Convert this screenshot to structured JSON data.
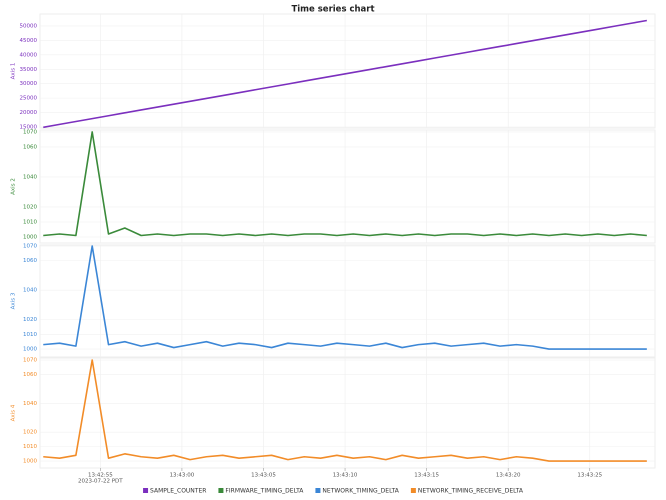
{
  "chart_data": [
    {
      "type": "line",
      "title": "Time series chart",
      "ylabel": "Axis 1",
      "x": [
        49371.5,
        49372.5,
        49373.5,
        49374.5,
        49375.5,
        49376.5,
        49377.5,
        49378.5,
        49379.5,
        49380.5,
        49381.5,
        49382.5,
        49383.5,
        49384.5,
        49385.5,
        49386.5,
        49387.5,
        49388.5,
        49389.5,
        49390.5,
        49391.5,
        49392.5,
        49393.5,
        49394.5,
        49395.5,
        49396.5,
        49397.5,
        49398.5,
        49399.5,
        49400.5,
        49401.5,
        49402.5,
        49403.5,
        49404.5,
        49405.5,
        49406.5,
        49407.5,
        49408.5
      ],
      "series": [
        {
          "name": "SAMPLE_COUNTER",
          "color": "#7b2fbe",
          "values": [
            14900,
            15900,
            16900,
            17900,
            18900,
            19900,
            20900,
            21900,
            22900,
            23900,
            24900,
            25900,
            26900,
            27900,
            28900,
            29900,
            30900,
            31900,
            32900,
            33900,
            34900,
            35900,
            36900,
            37900,
            38900,
            39900,
            40900,
            41900,
            42900,
            43900,
            44900,
            45900,
            46900,
            47900,
            48900,
            49900,
            50900,
            51900
          ]
        }
      ],
      "ylim": [
        14650,
        54150
      ],
      "yticks": [
        15000,
        20000,
        25000,
        30000,
        35000,
        40000,
        45000,
        50000
      ],
      "grid": true
    },
    {
      "type": "line",
      "ylabel": "Axis 2",
      "x": [
        49371.5,
        49372.5,
        49373.5,
        49374.5,
        49375.5,
        49376.5,
        49377.5,
        49378.5,
        49379.5,
        49380.5,
        49381.5,
        49382.5,
        49383.5,
        49384.5,
        49385.5,
        49386.5,
        49387.5,
        49388.5,
        49389.5,
        49390.5,
        49391.5,
        49392.5,
        49393.5,
        49394.5,
        49395.5,
        49396.5,
        49397.5,
        49398.5,
        49399.5,
        49400.5,
        49401.5,
        49402.5,
        49403.5,
        49404.5,
        49405.5,
        49406.5,
        49407.5,
        49408.5
      ],
      "series": [
        {
          "name": "FIRMWARE_TIMING_DELTA",
          "color": "#3a8a3a",
          "values": [
            1001,
            1002,
            1001,
            1070,
            1002,
            1006,
            1001,
            1002,
            1001,
            1002,
            1002,
            1001,
            1002,
            1001,
            1002,
            1001,
            1002,
            1002,
            1001,
            1002,
            1001,
            1002,
            1001,
            1002,
            1001,
            1002,
            1002,
            1001,
            1002,
            1001,
            1002,
            1001,
            1002,
            1001,
            1002,
            1001,
            1002,
            1001
          ]
        }
      ],
      "ylim": [
        996,
        1071.3
      ],
      "yticks": [
        1000,
        1010,
        1020,
        1040,
        1060,
        1070
      ],
      "grid": true
    },
    {
      "type": "line",
      "ylabel": "Axis 3",
      "x": [
        49371.5,
        49372.5,
        49373.5,
        49374.5,
        49375.5,
        49376.5,
        49377.5,
        49378.5,
        49379.5,
        49380.5,
        49381.5,
        49382.5,
        49383.5,
        49384.5,
        49385.5,
        49386.5,
        49387.5,
        49388.5,
        49389.5,
        49390.5,
        49391.5,
        49392.5,
        49393.5,
        49394.5,
        49395.5,
        49396.5,
        49397.5,
        49398.5,
        49399.5,
        49400.5,
        49401.5,
        49402.5,
        49403.5,
        49404.5,
        49405.5,
        49406.5,
        49407.5,
        49408.5
      ],
      "series": [
        {
          "name": "NETWORK_TIMING_DELTA",
          "color": "#3b86d6",
          "values": [
            1003,
            1004,
            1002,
            1070,
            1003,
            1005,
            1002,
            1004,
            1001,
            1003,
            1005,
            1002,
            1004,
            1003,
            1001,
            1004,
            1003,
            1002,
            1004,
            1003,
            1002,
            1004,
            1001,
            1003,
            1004,
            1002,
            1003,
            1004,
            1002,
            1003,
            1002,
            1000,
            1000,
            1000,
            1000,
            1000,
            1000,
            1000
          ]
        }
      ],
      "ylim": [
        994.6,
        1070.7
      ],
      "yticks": [
        1000,
        1010,
        1020,
        1040,
        1060,
        1070
      ],
      "grid": true
    },
    {
      "type": "line",
      "ylabel": "Axis 4",
      "x_sublabel": "2023-07-22 PDT",
      "x": [
        49371.5,
        49372.5,
        49373.5,
        49374.5,
        49375.5,
        49376.5,
        49377.5,
        49378.5,
        49379.5,
        49380.5,
        49381.5,
        49382.5,
        49383.5,
        49384.5,
        49385.5,
        49386.5,
        49387.5,
        49388.5,
        49389.5,
        49390.5,
        49391.5,
        49392.5,
        49393.5,
        49394.5,
        49395.5,
        49396.5,
        49397.5,
        49398.5,
        49399.5,
        49400.5,
        49401.5,
        49402.5,
        49403.5,
        49404.5,
        49405.5,
        49406.5,
        49407.5,
        49408.5
      ],
      "series": [
        {
          "name": "NETWORK_TIMING_RECEIVE_DELTA",
          "color": "#f28c28",
          "values": [
            1003,
            1002,
            1004,
            1070,
            1002,
            1005,
            1003,
            1002,
            1004,
            1001,
            1003,
            1004,
            1002,
            1003,
            1004,
            1001,
            1003,
            1002,
            1004,
            1002,
            1003,
            1001,
            1004,
            1002,
            1003,
            1004,
            1002,
            1003,
            1001,
            1003,
            1002,
            1000,
            1000,
            1000,
            1000,
            1000,
            1000,
            1000
          ]
        }
      ],
      "ylim": [
        995.2,
        1071.4
      ],
      "yticks": [
        1000,
        1010,
        1020,
        1040,
        1060,
        1070
      ],
      "grid": true,
      "xlim": [
        49371.3,
        49409
      ],
      "xticks": [
        {
          "value": 49375,
          "label": "13:42:55"
        },
        {
          "value": 49380,
          "label": "13:43:00"
        },
        {
          "value": 49385,
          "label": "13:43:05"
        },
        {
          "value": 49390,
          "label": "13:43:10"
        },
        {
          "value": 49395,
          "label": "13:43:15"
        },
        {
          "value": 49400,
          "label": "13:43:20"
        },
        {
          "value": 49405,
          "label": "13:43:25"
        }
      ]
    }
  ]
}
